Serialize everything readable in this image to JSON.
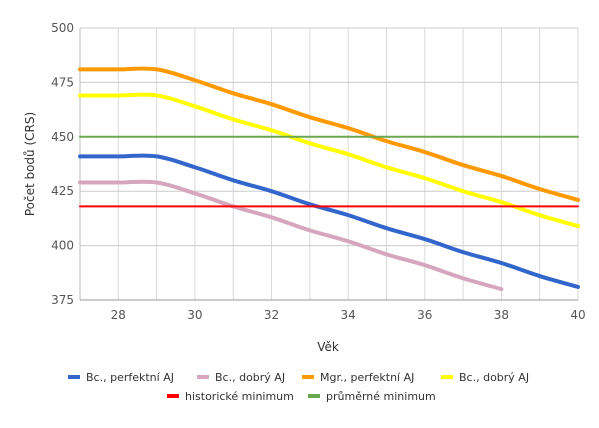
{
  "chart_data": {
    "type": "line",
    "title": "",
    "xlabel": "Věk",
    "ylabel": "Počet bodů (CRS)",
    "xlim": [
      27,
      40
    ],
    "ylim": [
      375,
      500
    ],
    "xticks": [
      28,
      30,
      32,
      34,
      36,
      38,
      40
    ],
    "yticks": [
      375,
      400,
      425,
      450,
      475,
      500
    ],
    "grid": true,
    "legend_position": "bottom",
    "series": [
      {
        "name": "Bc., perfektní AJ",
        "color": "#3366cc",
        "x": [
          27,
          28,
          29,
          30,
          31,
          32,
          33,
          34,
          35,
          36,
          37,
          38,
          39,
          40
        ],
        "values": [
          441,
          441,
          441,
          436,
          430,
          425,
          419,
          414,
          408,
          403,
          397,
          392,
          386,
          381
        ]
      },
      {
        "name": "Bc., dobrý AJ",
        "color": "#d5a6bd",
        "x": [
          27,
          28,
          29,
          30,
          31,
          32,
          33,
          34,
          35,
          36,
          37,
          38
        ],
        "values": [
          429,
          429,
          429,
          424,
          418,
          413,
          407,
          402,
          396,
          391,
          385,
          380
        ]
      },
      {
        "name": "Mgr., perfektní AJ",
        "color": "#ff9900",
        "x": [
          27,
          28,
          29,
          30,
          31,
          32,
          33,
          34,
          35,
          36,
          37,
          38,
          39,
          40
        ],
        "values": [
          481,
          481,
          481,
          476,
          470,
          465,
          459,
          454,
          448,
          443,
          437,
          432,
          426,
          421
        ]
      },
      {
        "name": "Bc., dobrý AJ",
        "color": "#ffff00",
        "x": [
          27,
          28,
          29,
          30,
          31,
          32,
          33,
          34,
          35,
          36,
          37,
          38,
          39,
          40
        ],
        "values": [
          469,
          469,
          469,
          464,
          458,
          453,
          447,
          442,
          436,
          431,
          425,
          420,
          414,
          409
        ]
      },
      {
        "name": "historické minimum",
        "color": "#ff0000",
        "x": [
          27,
          40
        ],
        "values": [
          418,
          418
        ]
      },
      {
        "name": "průměrné minimum",
        "color": "#6aa84f",
        "x": [
          27,
          40
        ],
        "values": [
          450,
          450
        ]
      }
    ]
  }
}
